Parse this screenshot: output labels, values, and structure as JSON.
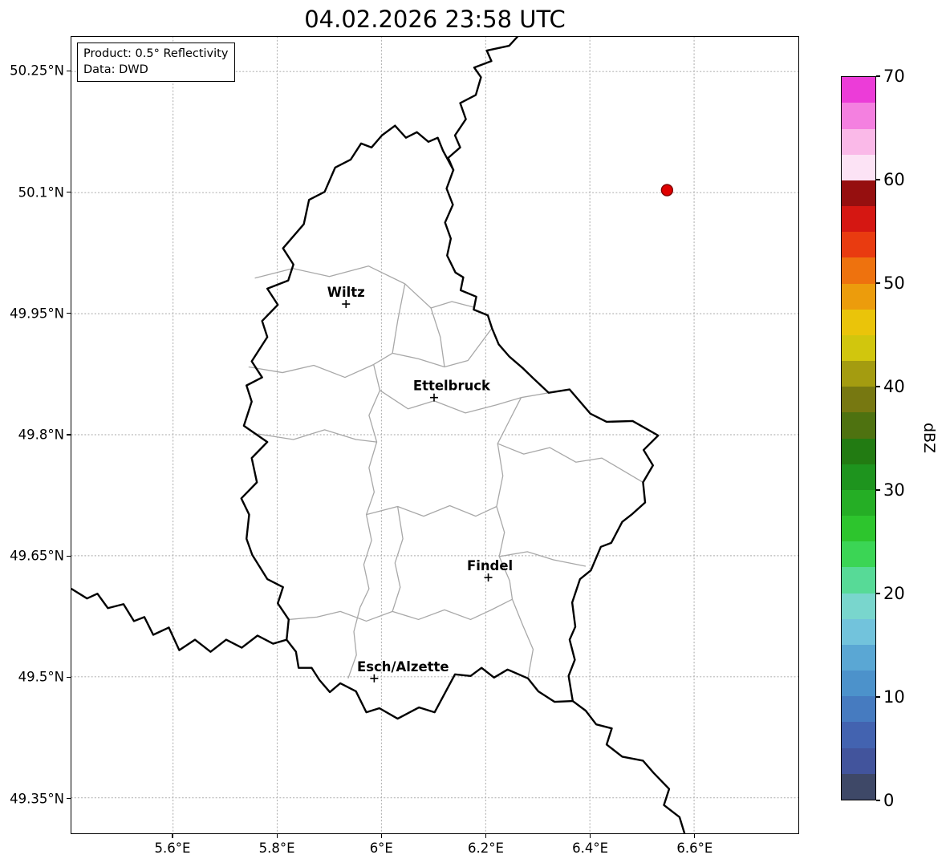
{
  "title": "04.02.2026 23:58 UTC",
  "info_box": {
    "line1": "Product: 0.5° Reflectivity",
    "line2": "Data: DWD"
  },
  "colorbar": {
    "label": "dBZ",
    "min": 0,
    "max": 70,
    "step_dbz": 2.5,
    "tick_values": [
      0,
      10,
      20,
      30,
      40,
      50,
      60,
      70
    ],
    "tick_labels": [
      "0",
      "10",
      "20",
      "30",
      "40",
      "50",
      "60",
      "70"
    ],
    "colors_bottom_to_top": [
      "#3e4867",
      "#42549c",
      "#4363b0",
      "#467bc0",
      "#4c92cb",
      "#5aa7d4",
      "#72c3dc",
      "#79d6cd",
      "#57da97",
      "#3bd555",
      "#2dc52d",
      "#25ae25",
      "#1e941e",
      "#227b12",
      "#4e7210",
      "#777811",
      "#a49c10",
      "#d1c60d",
      "#eac40a",
      "#ec9c0c",
      "#ee720e",
      "#e93b10",
      "#d51712",
      "#960f0f",
      "#fce3f5",
      "#fab9e8",
      "#f480e0",
      "#ec3cd8"
    ]
  },
  "axes": {
    "lon_range": [
      5.405,
      6.8
    ],
    "lat_range": [
      49.306,
      50.293
    ],
    "x_ticks": [
      {
        "value": 5.6,
        "label": "5.6°E"
      },
      {
        "value": 5.8,
        "label": "5.8°E"
      },
      {
        "value": 6.0,
        "label": "6°E"
      },
      {
        "value": 6.2,
        "label": "6.2°E"
      },
      {
        "value": 6.4,
        "label": "6.4°E"
      },
      {
        "value": 6.6,
        "label": "6.6°E"
      }
    ],
    "y_ticks": [
      {
        "value": 50.25,
        "label": "50.25°N"
      },
      {
        "value": 50.1,
        "label": "50.1°N"
      },
      {
        "value": 49.95,
        "label": "49.95°N"
      },
      {
        "value": 49.8,
        "label": "49.8°N"
      },
      {
        "value": 49.65,
        "label": "49.65°N"
      },
      {
        "value": 49.5,
        "label": "49.5°N"
      },
      {
        "value": 49.35,
        "label": "49.35°N"
      }
    ]
  },
  "cities": [
    {
      "name": "Wiltz",
      "lon": 5.932,
      "lat": 49.962,
      "label_dx": 0
    },
    {
      "name": "Ettelbruck",
      "lon": 6.101,
      "lat": 49.846,
      "label_dx": 22
    },
    {
      "name": "Findel",
      "lon": 6.205,
      "lat": 49.623,
      "label_dx": 2
    },
    {
      "name": "Esch/Alzette",
      "lon": 5.986,
      "lat": 49.498,
      "label_dx": 36
    }
  ],
  "radar_point": {
    "lon": 6.548,
    "lat": 50.103,
    "color": "#e00000",
    "edge_color": "#7e0000"
  },
  "map": {
    "country_border_color": "#000000",
    "district_border_color": "#a8a8a8",
    "grid_color": "#b5b5b5",
    "country_borders": [
      [
        [
          6.026,
          50.183
        ],
        [
          6.047,
          50.168
        ],
        [
          6.068,
          50.175
        ],
        [
          6.09,
          50.163
        ],
        [
          6.108,
          50.168
        ],
        [
          6.118,
          50.152
        ],
        [
          6.138,
          50.128
        ],
        [
          6.125,
          50.105
        ],
        [
          6.137,
          50.085
        ],
        [
          6.122,
          50.063
        ],
        [
          6.133,
          50.043
        ],
        [
          6.126,
          50.022
        ],
        [
          6.142,
          50.001
        ],
        [
          6.157,
          49.995
        ],
        [
          6.152,
          49.979
        ],
        [
          6.182,
          49.971
        ],
        [
          6.177,
          49.955
        ],
        [
          6.204,
          49.948
        ],
        [
          6.212,
          49.932
        ],
        [
          6.225,
          49.912
        ],
        [
          6.245,
          49.897
        ],
        [
          6.272,
          49.882
        ],
        [
          6.291,
          49.87
        ],
        [
          6.321,
          49.852
        ],
        [
          6.361,
          49.856
        ],
        [
          6.401,
          49.826
        ],
        [
          6.432,
          49.816
        ],
        [
          6.482,
          49.817
        ],
        [
          6.512,
          49.806
        ],
        [
          6.531,
          49.799
        ],
        [
          6.503,
          49.781
        ],
        [
          6.521,
          49.762
        ],
        [
          6.502,
          49.741
        ],
        [
          6.506,
          49.716
        ],
        [
          6.48,
          49.701
        ],
        [
          6.462,
          49.692
        ],
        [
          6.441,
          49.666
        ],
        [
          6.421,
          49.661
        ],
        [
          6.402,
          49.632
        ],
        [
          6.381,
          49.621
        ],
        [
          6.366,
          49.592
        ],
        [
          6.372,
          49.562
        ],
        [
          6.361,
          49.546
        ],
        [
          6.371,
          49.521
        ],
        [
          6.359,
          49.501
        ],
        [
          6.367,
          49.47
        ],
        [
          6.332,
          49.469
        ],
        [
          6.301,
          49.482
        ],
        [
          6.281,
          49.498
        ],
        [
          6.242,
          49.509
        ],
        [
          6.216,
          49.499
        ],
        [
          6.192,
          49.511
        ],
        [
          6.171,
          49.501
        ],
        [
          6.141,
          49.503
        ],
        [
          6.102,
          49.456
        ],
        [
          6.072,
          49.462
        ],
        [
          6.031,
          49.448
        ],
        [
          5.996,
          49.461
        ],
        [
          5.971,
          49.456
        ],
        [
          5.951,
          49.482
        ],
        [
          5.921,
          49.492
        ],
        [
          5.901,
          49.481
        ],
        [
          5.881,
          49.496
        ],
        [
          5.866,
          49.511
        ],
        [
          5.841,
          49.511
        ],
        [
          5.836,
          49.531
        ],
        [
          5.818,
          49.546
        ],
        [
          5.822,
          49.571
        ],
        [
          5.801,
          49.591
        ],
        [
          5.811,
          49.611
        ],
        [
          5.781,
          49.621
        ],
        [
          5.752,
          49.651
        ],
        [
          5.741,
          49.671
        ],
        [
          5.746,
          49.701
        ],
        [
          5.731,
          49.721
        ],
        [
          5.761,
          49.741
        ],
        [
          5.751,
          49.771
        ],
        [
          5.781,
          49.791
        ],
        [
          5.736,
          49.811
        ],
        [
          5.751,
          49.841
        ],
        [
          5.741,
          49.861
        ],
        [
          5.771,
          49.871
        ],
        [
          5.751,
          49.891
        ],
        [
          5.781,
          49.921
        ],
        [
          5.771,
          49.941
        ],
        [
          5.801,
          49.961
        ],
        [
          5.781,
          49.981
        ],
        [
          5.821,
          49.991
        ],
        [
          5.831,
          50.011
        ],
        [
          5.811,
          50.031
        ],
        [
          5.851,
          50.061
        ],
        [
          5.861,
          50.091
        ],
        [
          5.891,
          50.101
        ],
        [
          5.911,
          50.131
        ],
        [
          5.941,
          50.141
        ],
        [
          5.961,
          50.161
        ],
        [
          5.981,
          50.156
        ],
        [
          6.001,
          50.171
        ],
        [
          6.026,
          50.183
        ]
      ],
      [
        [
          6.138,
          50.128
        ],
        [
          6.128,
          50.143
        ],
        [
          6.151,
          50.156
        ],
        [
          6.141,
          50.171
        ],
        [
          6.162,
          50.191
        ],
        [
          6.151,
          50.211
        ],
        [
          6.181,
          50.221
        ],
        [
          6.191,
          50.243
        ],
        [
          6.178,
          50.255
        ],
        [
          6.211,
          50.263
        ],
        [
          6.202,
          50.276
        ],
        [
          6.245,
          50.282
        ],
        [
          6.262,
          50.294
        ]
      ],
      [
        [
          5.405,
          49.609
        ],
        [
          5.435,
          49.597
        ],
        [
          5.455,
          49.603
        ],
        [
          5.475,
          49.585
        ],
        [
          5.505,
          49.59
        ],
        [
          5.525,
          49.569
        ],
        [
          5.545,
          49.574
        ],
        [
          5.562,
          49.552
        ],
        [
          5.592,
          49.561
        ],
        [
          5.612,
          49.533
        ],
        [
          5.642,
          49.546
        ],
        [
          5.672,
          49.531
        ],
        [
          5.702,
          49.546
        ],
        [
          5.732,
          49.536
        ],
        [
          5.762,
          49.551
        ],
        [
          5.792,
          49.541
        ],
        [
          5.818,
          49.546
        ]
      ],
      [
        [
          6.367,
          49.47
        ],
        [
          6.392,
          49.458
        ],
        [
          6.412,
          49.441
        ],
        [
          6.442,
          49.436
        ],
        [
          6.432,
          49.416
        ],
        [
          6.462,
          49.401
        ],
        [
          6.502,
          49.396
        ],
        [
          6.522,
          49.381
        ],
        [
          6.552,
          49.361
        ],
        [
          6.542,
          49.341
        ],
        [
          6.572,
          49.326
        ],
        [
          6.582,
          49.305
        ]
      ]
    ],
    "district_borders": [
      [
        [
          5.757,
          49.994
        ],
        [
          5.83,
          50.006
        ],
        [
          5.9,
          49.996
        ],
        [
          5.975,
          50.009
        ],
        [
          6.045,
          49.987
        ]
      ],
      [
        [
          6.045,
          49.987
        ],
        [
          6.095,
          49.957
        ],
        [
          6.135,
          49.965
        ],
        [
          6.177,
          49.958
        ]
      ],
      [
        [
          5.745,
          49.884
        ],
        [
          5.81,
          49.877
        ],
        [
          5.87,
          49.886
        ],
        [
          5.93,
          49.871
        ],
        [
          5.985,
          49.887
        ],
        [
          6.021,
          49.901
        ]
      ],
      [
        [
          6.021,
          49.901
        ],
        [
          6.031,
          49.941
        ],
        [
          6.045,
          49.987
        ]
      ],
      [
        [
          6.021,
          49.901
        ],
        [
          6.071,
          49.894
        ],
        [
          6.121,
          49.884
        ],
        [
          6.166,
          49.892
        ],
        [
          6.212,
          49.932
        ]
      ],
      [
        [
          6.095,
          49.957
        ],
        [
          6.113,
          49.921
        ],
        [
          6.121,
          49.884
        ]
      ],
      [
        [
          5.985,
          49.887
        ],
        [
          5.997,
          49.855
        ],
        [
          5.976,
          49.824
        ],
        [
          5.991,
          49.791
        ],
        [
          5.976,
          49.759
        ],
        [
          5.986,
          49.729
        ],
        [
          5.971,
          49.701
        ],
        [
          5.981,
          49.669
        ],
        [
          5.966,
          49.639
        ],
        [
          5.976,
          49.609
        ],
        [
          5.959,
          49.586
        ]
      ],
      [
        [
          5.959,
          49.586
        ],
        [
          5.947,
          49.556
        ],
        [
          5.952,
          49.527
        ],
        [
          5.936,
          49.498
        ]
      ],
      [
        [
          5.997,
          49.855
        ],
        [
          6.051,
          49.832
        ],
        [
          6.101,
          49.842
        ],
        [
          6.161,
          49.827
        ],
        [
          6.221,
          49.837
        ],
        [
          6.268,
          49.846
        ],
        [
          6.321,
          49.852
        ]
      ],
      [
        [
          5.971,
          49.701
        ],
        [
          6.031,
          49.711
        ],
        [
          6.081,
          49.699
        ],
        [
          6.131,
          49.712
        ],
        [
          6.181,
          49.699
        ],
        [
          6.221,
          49.711
        ]
      ],
      [
        [
          6.221,
          49.711
        ],
        [
          6.233,
          49.749
        ],
        [
          6.223,
          49.789
        ],
        [
          6.268,
          49.846
        ]
      ],
      [
        [
          6.221,
          49.711
        ],
        [
          6.236,
          49.679
        ],
        [
          6.226,
          49.649
        ],
        [
          6.246,
          49.619
        ],
        [
          6.251,
          49.596
        ]
      ],
      [
        [
          5.822,
          49.571
        ],
        [
          5.876,
          49.574
        ],
        [
          5.921,
          49.581
        ],
        [
          5.971,
          49.569
        ],
        [
          6.021,
          49.581
        ],
        [
          6.071,
          49.571
        ],
        [
          6.121,
          49.583
        ],
        [
          6.171,
          49.571
        ],
        [
          6.211,
          49.583
        ],
        [
          6.251,
          49.596
        ]
      ],
      [
        [
          6.251,
          49.596
        ],
        [
          6.271,
          49.564
        ],
        [
          6.291,
          49.534
        ],
        [
          6.281,
          49.498
        ]
      ],
      [
        [
          6.031,
          49.711
        ],
        [
          6.041,
          49.671
        ],
        [
          6.026,
          49.641
        ],
        [
          6.036,
          49.611
        ],
        [
          6.021,
          49.581
        ]
      ],
      [
        [
          6.226,
          49.649
        ],
        [
          6.28,
          49.655
        ],
        [
          6.33,
          49.645
        ],
        [
          6.392,
          49.637
        ]
      ],
      [
        [
          6.223,
          49.789
        ],
        [
          6.273,
          49.776
        ],
        [
          6.323,
          49.784
        ],
        [
          6.373,
          49.766
        ],
        [
          6.423,
          49.771
        ],
        [
          6.502,
          49.741
        ]
      ],
      [
        [
          5.762,
          49.801
        ],
        [
          5.831,
          49.794
        ],
        [
          5.891,
          49.806
        ],
        [
          5.951,
          49.794
        ],
        [
          5.991,
          49.791
        ]
      ]
    ]
  }
}
